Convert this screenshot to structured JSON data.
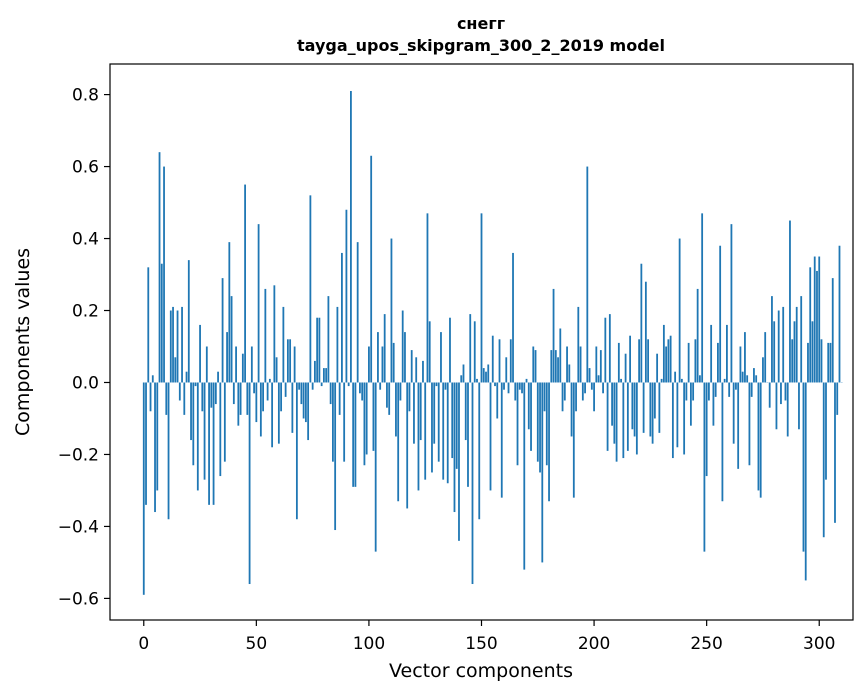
{
  "chart_data": {
    "type": "bar",
    "title": "снегг",
    "subtitle": "tayga_upos_skipgram_300_2_2019 model",
    "xlabel": "Vector components",
    "ylabel": "Components values",
    "xlim": [
      -15,
      315
    ],
    "ylim": [
      -0.66,
      0.885
    ],
    "xticks": [
      0,
      50,
      100,
      150,
      200,
      250,
      300
    ],
    "xtick_labels": [
      "0",
      "50",
      "100",
      "150",
      "200",
      "250",
      "300"
    ],
    "yticks": [
      -0.6,
      -0.4,
      -0.2,
      0.0,
      0.2,
      0.4,
      0.6,
      0.8
    ],
    "ytick_labels": [
      "−0.6",
      "−0.4",
      "−0.2",
      "0.0",
      "0.2",
      "0.4",
      "0.6",
      "0.8"
    ],
    "grid": false,
    "bar_color": "#1f77b4",
    "series": [
      {
        "values": [
          -0.59,
          -0.34,
          0.32,
          -0.08,
          0.02,
          -0.36,
          -0.3,
          0.64,
          0.33,
          0.6,
          -0.09,
          -0.38,
          0.2,
          0.21,
          0.07,
          0.2,
          -0.05,
          0.21,
          -0.09,
          0.03,
          0.34,
          -0.16,
          -0.23,
          -0.01,
          -0.3,
          0.16,
          -0.08,
          -0.27,
          0.1,
          -0.34,
          -0.07,
          -0.34,
          -0.06,
          0.03,
          -0.26,
          0.29,
          -0.22,
          0.14,
          0.39,
          0.24,
          -0.06,
          0.1,
          -0.12,
          -0.09,
          0.08,
          0.55,
          -0.09,
          -0.56,
          0.1,
          -0.03,
          -0.11,
          0.44,
          -0.15,
          -0.08,
          0.26,
          -0.05,
          0.01,
          -0.18,
          0.27,
          0.07,
          -0.17,
          -0.08,
          0.21,
          -0.04,
          0.12,
          0.12,
          -0.14,
          0.1,
          -0.38,
          -0.02,
          -0.06,
          -0.1,
          -0.11,
          -0.16,
          0.52,
          -0.02,
          0.06,
          0.18,
          0.18,
          -0.01,
          0.04,
          0.04,
          0.24,
          -0.06,
          -0.22,
          -0.41,
          0.21,
          -0.09,
          0.36,
          -0.22,
          0.48,
          -0.01,
          0.81,
          -0.29,
          -0.29,
          0.39,
          -0.03,
          -0.05,
          -0.23,
          -0.2,
          0.1,
          0.63,
          -0.19,
          -0.47,
          0.14,
          -0.02,
          0.1,
          0.19,
          -0.07,
          -0.09,
          0.4,
          0.11,
          -0.15,
          -0.33,
          -0.05,
          0.2,
          0.14,
          -0.35,
          -0.08,
          0.09,
          -0.17,
          0.07,
          -0.3,
          -0.16,
          0.06,
          -0.27,
          0.47,
          0.17,
          -0.25,
          -0.17,
          -0.01,
          -0.22,
          0.14,
          -0.27,
          -0.02,
          -0.28,
          0.18,
          -0.21,
          -0.36,
          -0.24,
          -0.44,
          0.02,
          0.05,
          -0.16,
          -0.29,
          0.19,
          -0.56,
          0.17,
          0.01,
          -0.38,
          0.47,
          0.04,
          0.03,
          0.05,
          -0.3,
          0.13,
          -0.01,
          -0.1,
          0.12,
          -0.32,
          -0.02,
          0.07,
          -0.03,
          0.12,
          0.36,
          -0.05,
          -0.23,
          -0.02,
          -0.03,
          -0.52,
          0.01,
          -0.13,
          -0.19,
          0.1,
          0.09,
          -0.22,
          -0.25,
          -0.5,
          -0.08,
          -0.23,
          -0.33,
          0.09,
          0.26,
          0.09,
          0.07,
          0.15,
          -0.08,
          -0.05,
          0.1,
          0.05,
          -0.15,
          -0.32,
          -0.08,
          0.21,
          0.1,
          -0.05,
          -0.03,
          0.6,
          0.04,
          -0.02,
          -0.08,
          0.1,
          0.02,
          0.09,
          -0.03,
          0.18,
          -0.19,
          0.19,
          -0.12,
          -0.17,
          -0.22,
          0.11,
          0.01,
          -0.21,
          0.08,
          -0.19,
          0.13,
          -0.13,
          -0.15,
          -0.2,
          0.12,
          0.33,
          -0.14,
          0.28,
          0.12,
          -0.15,
          -0.17,
          -0.1,
          0.08,
          -0.14,
          0.01,
          0.16,
          0.1,
          0.12,
          0.13,
          -0.21,
          0.03,
          -0.18,
          0.4,
          0.01,
          -0.2,
          -0.05,
          0.11,
          -0.12,
          -0.05,
          0.12,
          0.26,
          0.02,
          0.47,
          -0.47,
          -0.26,
          -0.05,
          0.16,
          -0.12,
          -0.04,
          0.11,
          0.38,
          -0.33,
          0.01,
          0.16,
          -0.04,
          0.44,
          -0.17,
          -0.02,
          -0.24,
          0.1,
          0.03,
          0.14,
          0.02,
          -0.23,
          -0.04,
          0.04,
          0.02,
          -0.3,
          -0.32,
          0.07,
          0.14,
          0.0,
          -0.07,
          0.24,
          0.17,
          -0.13,
          0.2,
          -0.06,
          0.21,
          -0.05,
          -0.15,
          0.45,
          0.12,
          0.17,
          0.21,
          -0.13,
          0.24,
          -0.47,
          -0.55,
          0.11,
          0.32,
          0.17,
          0.35,
          0.31,
          0.35,
          0.12,
          -0.43,
          -0.27,
          0.11,
          0.11,
          0.29,
          -0.39,
          -0.09,
          0.38,
          0.0
        ]
      }
    ]
  }
}
